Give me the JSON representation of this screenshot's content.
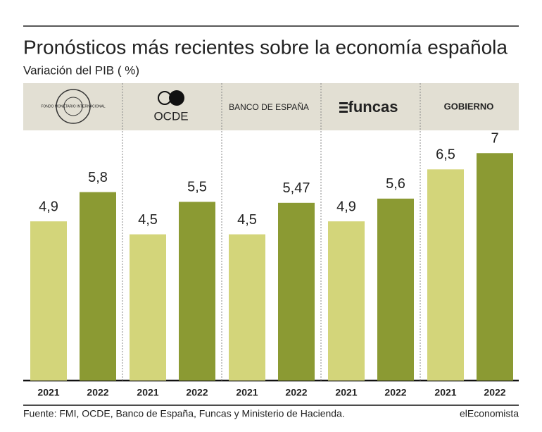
{
  "chart_data": {
    "type": "bar",
    "title": "Pronósticos más recientes sobre la economía española",
    "subtitle": "Variación del PIB (  %)",
    "categories": [
      "FONDO MONETARIO INTERNACIONAL",
      "OCDE",
      "BANCO DE ESPAÑA",
      "funcas",
      "GOBIERNO"
    ],
    "series": [
      {
        "name": "2021",
        "color": "#d3d57a",
        "values": [
          4.9,
          4.5,
          4.5,
          4.9,
          6.5
        ],
        "value_labels": [
          "4,9",
          "4,5",
          "4,5",
          "4,9",
          "6,5"
        ]
      },
      {
        "name": "2022",
        "color": "#8b9a33",
        "values": [
          5.8,
          5.5,
          5.47,
          5.6,
          7
        ],
        "value_labels": [
          "5,8",
          "5,5",
          "5,47",
          "5,6",
          "7"
        ]
      }
    ],
    "ylim": [
      0,
      7.7
    ],
    "source": "Fuente: FMI, OCDE, Banco de España, Funcas y Ministerio de Hacienda.",
    "brand": "elEconomista"
  }
}
